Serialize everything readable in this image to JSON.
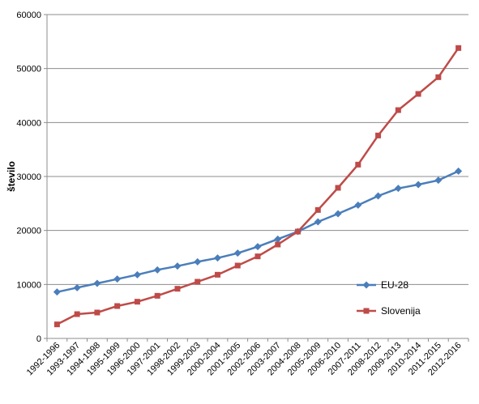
{
  "chart_data": {
    "type": "line",
    "title": "",
    "xlabel": "",
    "ylabel": "število",
    "ylim": [
      0,
      60000
    ],
    "yticks": [
      0,
      10000,
      20000,
      30000,
      40000,
      50000,
      60000
    ],
    "grid": true,
    "legend_position": "bottom-right",
    "categories": [
      "1992-1996",
      "1993-1997",
      "1994-1998",
      "1995-1999",
      "1996-2000",
      "1997-2001",
      "1998-2002",
      "1999-2003",
      "2000-2004",
      "2001-2005",
      "2002-2006",
      "2003-2007",
      "2004-2008",
      "2005-2009",
      "2006-2010",
      "2007-2011",
      "2008-2012",
      "2009-2013",
      "2010-2014",
      "2011-2015",
      "2012-2016"
    ],
    "series": [
      {
        "name": "EU-28",
        "color": "#4a7ebb",
        "marker": "diamond",
        "values": [
          8600,
          9400,
          10200,
          11000,
          11800,
          12700,
          13400,
          14200,
          14900,
          15800,
          17000,
          18400,
          19800,
          21600,
          23100,
          24700,
          26400,
          27800,
          28500,
          29300,
          31000
        ]
      },
      {
        "name": "Slovenija",
        "color": "#be4b48",
        "marker": "square",
        "values": [
          2600,
          4500,
          4800,
          6000,
          6800,
          7900,
          9200,
          10500,
          11800,
          13500,
          15200,
          17400,
          19800,
          23800,
          27900,
          32200,
          37600,
          42300,
          45300,
          48400,
          53800
        ]
      }
    ]
  }
}
